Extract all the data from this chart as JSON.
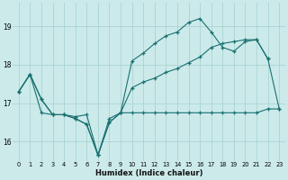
{
  "xlabel": "Humidex (Indice chaleur)",
  "background_color": "#cceaea",
  "grid_color": "#aad4d4",
  "line_color": "#1a7070",
  "x_min": -0.5,
  "x_max": 23.5,
  "y_min": 15.5,
  "y_max": 19.6,
  "yticks": [
    16,
    17,
    18,
    19
  ],
  "xticks": [
    0,
    1,
    2,
    3,
    4,
    5,
    6,
    7,
    8,
    9,
    10,
    11,
    12,
    13,
    14,
    15,
    16,
    17,
    18,
    19,
    20,
    21,
    22,
    23
  ],
  "line1_y": [
    17.3,
    17.75,
    17.1,
    16.7,
    16.7,
    16.6,
    16.45,
    15.65,
    16.5,
    16.75,
    18.1,
    18.3,
    18.55,
    18.75,
    18.85,
    19.1,
    19.2,
    18.85,
    18.45,
    18.35,
    18.6,
    18.65,
    18.15,
    null
  ],
  "line2_y": [
    17.3,
    17.75,
    17.1,
    16.7,
    16.7,
    16.6,
    16.45,
    15.65,
    16.5,
    16.75,
    17.4,
    17.55,
    17.65,
    17.8,
    17.9,
    18.05,
    18.2,
    18.45,
    18.55,
    18.6,
    18.65,
    18.65,
    18.15,
    16.85
  ],
  "line3_y": [
    17.3,
    17.75,
    16.75,
    16.7,
    16.7,
    16.65,
    16.7,
    15.65,
    16.6,
    16.75,
    16.75,
    16.75,
    16.75,
    16.75,
    16.75,
    16.75,
    16.75,
    16.75,
    16.75,
    16.75,
    16.75,
    16.75,
    16.85,
    16.85
  ]
}
